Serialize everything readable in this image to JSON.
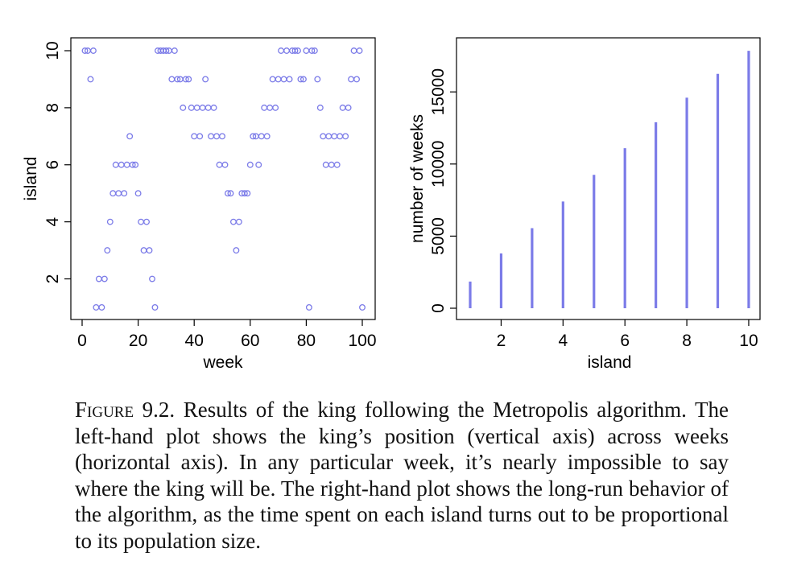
{
  "chart_data": [
    {
      "type": "scatter",
      "xlabel": "week",
      "ylabel": "island",
      "xlim": [
        0,
        100
      ],
      "ylim": [
        1,
        10
      ],
      "x_ticks": [
        "0",
        "20",
        "40",
        "60",
        "80",
        "100"
      ],
      "y_ticks": [
        "2",
        "4",
        "6",
        "8",
        "10"
      ],
      "marker": "open-circle",
      "color": "#7b7be8",
      "points": [
        [
          1,
          10
        ],
        [
          2,
          10
        ],
        [
          3,
          9
        ],
        [
          4,
          10
        ],
        [
          5,
          1
        ],
        [
          6,
          2
        ],
        [
          7,
          1
        ],
        [
          8,
          2
        ],
        [
          9,
          3
        ],
        [
          10,
          4
        ],
        [
          11,
          5
        ],
        [
          12,
          6
        ],
        [
          13,
          5
        ],
        [
          14,
          6
        ],
        [
          15,
          5
        ],
        [
          16,
          6
        ],
        [
          17,
          7
        ],
        [
          18,
          6
        ],
        [
          19,
          6
        ],
        [
          20,
          5
        ],
        [
          21,
          4
        ],
        [
          22,
          3
        ],
        [
          23,
          4
        ],
        [
          24,
          3
        ],
        [
          25,
          2
        ],
        [
          26,
          1
        ],
        [
          27,
          10
        ],
        [
          28,
          10
        ],
        [
          29,
          10
        ],
        [
          30,
          10
        ],
        [
          31,
          10
        ],
        [
          32,
          9
        ],
        [
          33,
          10
        ],
        [
          34,
          9
        ],
        [
          35,
          9
        ],
        [
          36,
          8
        ],
        [
          37,
          9
        ],
        [
          38,
          9
        ],
        [
          39,
          8
        ],
        [
          40,
          7
        ],
        [
          41,
          8
        ],
        [
          42,
          7
        ],
        [
          43,
          8
        ],
        [
          44,
          9
        ],
        [
          45,
          8
        ],
        [
          46,
          7
        ],
        [
          47,
          8
        ],
        [
          48,
          7
        ],
        [
          49,
          6
        ],
        [
          50,
          7
        ],
        [
          51,
          6
        ],
        [
          52,
          5
        ],
        [
          53,
          5
        ],
        [
          54,
          4
        ],
        [
          55,
          3
        ],
        [
          56,
          4
        ],
        [
          57,
          5
        ],
        [
          58,
          5
        ],
        [
          59,
          5
        ],
        [
          60,
          6
        ],
        [
          61,
          7
        ],
        [
          62,
          7
        ],
        [
          63,
          6
        ],
        [
          64,
          7
        ],
        [
          65,
          8
        ],
        [
          66,
          7
        ],
        [
          67,
          8
        ],
        [
          68,
          9
        ],
        [
          69,
          8
        ],
        [
          70,
          9
        ],
        [
          71,
          10
        ],
        [
          72,
          9
        ],
        [
          73,
          10
        ],
        [
          74,
          9
        ],
        [
          75,
          10
        ],
        [
          76,
          10
        ],
        [
          77,
          10
        ],
        [
          78,
          9
        ],
        [
          79,
          9
        ],
        [
          80,
          10
        ],
        [
          81,
          1
        ],
        [
          82,
          10
        ],
        [
          83,
          10
        ],
        [
          84,
          9
        ],
        [
          85,
          8
        ],
        [
          86,
          7
        ],
        [
          87,
          6
        ],
        [
          88,
          7
        ],
        [
          89,
          6
        ],
        [
          90,
          7
        ],
        [
          91,
          6
        ],
        [
          92,
          7
        ],
        [
          93,
          8
        ],
        [
          94,
          7
        ],
        [
          95,
          8
        ],
        [
          96,
          9
        ],
        [
          97,
          10
        ],
        [
          98,
          9
        ],
        [
          99,
          10
        ],
        [
          100,
          1
        ]
      ]
    },
    {
      "type": "bar",
      "xlabel": "island",
      "ylabel": "number of weeks",
      "xlim": [
        1,
        10
      ],
      "ylim": [
        0,
        18000
      ],
      "x_ticks": [
        "2",
        "4",
        "6",
        "8",
        "10"
      ],
      "y_ticks": [
        "0",
        "5000",
        "10000",
        "15000"
      ],
      "color": "#7b7be8",
      "categories": [
        1,
        2,
        3,
        4,
        5,
        6,
        7,
        8,
        9,
        10
      ],
      "values": [
        1850,
        3800,
        5550,
        7400,
        9250,
        11100,
        12900,
        14600,
        16250,
        17850
      ]
    }
  ],
  "caption": {
    "label": "Figure 9.2.",
    "text": "Results of the king following the Metropolis algorithm. The left-hand plot shows the king’s position (vertical axis) across weeks (horizontal axis). In any particular week, it’s nearly impossible to say where the king will be. The right-hand plot shows the long-run behavior of the algorithm, as the time spent on each island turns out to be proportional to its population size."
  }
}
